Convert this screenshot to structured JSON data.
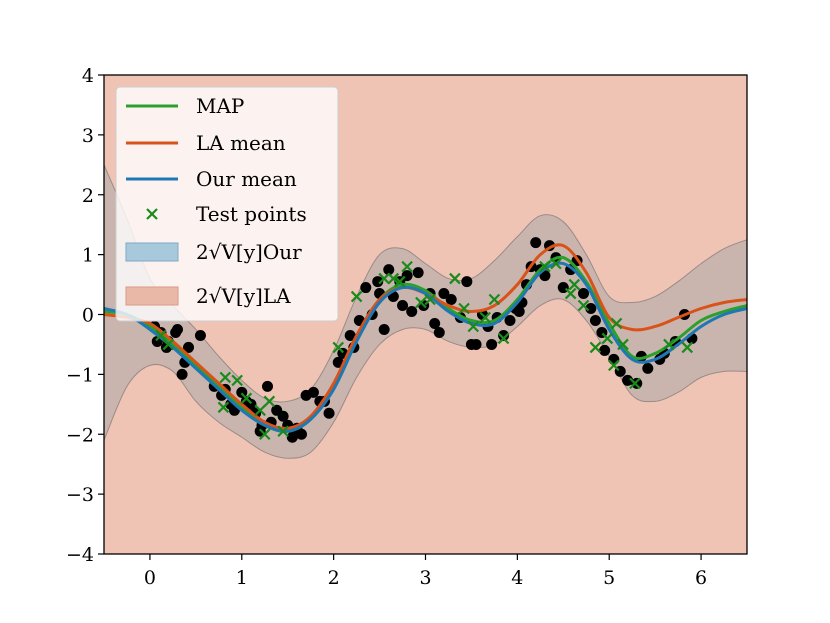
{
  "chart_data": {
    "type": "line",
    "title": "",
    "xlabel": "",
    "ylabel": "",
    "xlim": [
      -0.5,
      6.5
    ],
    "ylim": [
      -4,
      4
    ],
    "x_ticks": [
      0,
      1,
      2,
      3,
      4,
      5,
      6
    ],
    "y_ticks": [
      -4,
      -3,
      -2,
      -1,
      0,
      1,
      2,
      3,
      4
    ],
    "x_tick_labels": [
      "0",
      "1",
      "2",
      "3",
      "4",
      "5",
      "6"
    ],
    "y_tick_labels": [
      "−4",
      "−3",
      "−2",
      "−1",
      "0",
      "1",
      "2",
      "3",
      "4"
    ],
    "legend_position": "top-left",
    "colors": {
      "map": "#2ca02c",
      "la_mean": "#d95319",
      "our_mean": "#1f77b4",
      "test_points": "#1a8a1a",
      "train_points": "#000000",
      "our_band": "#a9a9a9",
      "la_band": "#efc4b4"
    },
    "legend": [
      {
        "key": "map",
        "label": "MAP",
        "kind": "line",
        "color": "#2ca02c"
      },
      {
        "key": "la_mean",
        "label": "LA mean",
        "kind": "line",
        "color": "#d95319"
      },
      {
        "key": "our_mean",
        "label": "Our mean",
        "kind": "line",
        "color": "#1f77b4"
      },
      {
        "key": "test",
        "label": "Test points",
        "kind": "marker",
        "color": "#1a8a1a"
      },
      {
        "key": "our_band",
        "label": "2√V[y]Our",
        "kind": "patch",
        "color": "#a8c8dc"
      },
      {
        "key": "la_band",
        "label": "2√V[y]LA",
        "kind": "patch",
        "color": "#e9b8a6"
      }
    ],
    "x": [
      -0.5,
      -0.25,
      0.0,
      0.25,
      0.5,
      0.75,
      1.0,
      1.25,
      1.5,
      1.75,
      2.0,
      2.25,
      2.5,
      2.75,
      3.0,
      3.25,
      3.5,
      3.75,
      4.0,
      4.25,
      4.5,
      4.75,
      5.0,
      5.25,
      5.5,
      5.75,
      6.0,
      6.25,
      6.5
    ],
    "series": [
      {
        "name": "MAP",
        "values": [
          0.05,
          0.0,
          -0.2,
          -0.5,
          -0.85,
          -1.2,
          -1.55,
          -1.85,
          -1.95,
          -1.75,
          -1.2,
          -0.4,
          0.25,
          0.5,
          0.4,
          0.1,
          -0.1,
          -0.1,
          0.25,
          0.75,
          0.95,
          0.55,
          -0.15,
          -0.7,
          -0.65,
          -0.4,
          -0.1,
          0.05,
          0.15
        ]
      },
      {
        "name": "LA mean",
        "values": [
          0.0,
          -0.05,
          -0.15,
          -0.45,
          -0.8,
          -1.15,
          -1.5,
          -1.8,
          -1.9,
          -1.7,
          -1.15,
          -0.35,
          0.25,
          0.45,
          0.35,
          0.15,
          0.05,
          0.15,
          0.5,
          1.0,
          1.15,
          0.7,
          -0.05,
          -0.25,
          -0.2,
          -0.05,
          0.1,
          0.2,
          0.25
        ]
      },
      {
        "name": "Our mean",
        "values": [
          0.1,
          0.0,
          -0.25,
          -0.55,
          -0.9,
          -1.25,
          -1.6,
          -1.85,
          -1.95,
          -1.75,
          -1.25,
          -0.45,
          0.2,
          0.45,
          0.35,
          0.05,
          -0.15,
          -0.15,
          0.2,
          0.7,
          0.85,
          0.5,
          -0.25,
          -0.75,
          -0.75,
          -0.5,
          -0.2,
          0.0,
          0.1
        ]
      }
    ],
    "our_band": {
      "upper": [
        2.5,
        1.6,
        0.6,
        0.15,
        -0.25,
        -0.7,
        -1.1,
        -1.4,
        -1.45,
        -1.25,
        -0.6,
        0.3,
        1.0,
        1.1,
        0.85,
        0.6,
        0.6,
        0.9,
        1.3,
        1.65,
        1.55,
        1.0,
        0.3,
        0.2,
        0.3,
        0.55,
        0.85,
        1.1,
        1.25
      ],
      "lower": [
        -2.1,
        -1.2,
        -0.85,
        -0.95,
        -1.45,
        -1.8,
        -2.05,
        -2.3,
        -2.4,
        -2.3,
        -1.8,
        -1.05,
        -0.5,
        -0.25,
        -0.25,
        -0.45,
        -0.55,
        -0.5,
        -0.2,
        0.15,
        0.25,
        -0.1,
        -0.7,
        -1.35,
        -1.45,
        -1.3,
        -1.05,
        -0.95,
        -0.95
      ]
    },
    "train_points": {
      "x": [
        0.05,
        0.08,
        0.12,
        0.18,
        0.2,
        0.22,
        0.28,
        0.3,
        0.35,
        0.38,
        0.42,
        0.55,
        0.7,
        0.78,
        0.82,
        0.88,
        0.92,
        1.0,
        1.05,
        1.1,
        1.15,
        1.2,
        1.22,
        1.28,
        1.32,
        1.38,
        1.45,
        1.5,
        1.55,
        1.6,
        1.65,
        1.7,
        1.78,
        1.85,
        1.9,
        1.95,
        2.05,
        2.1,
        2.18,
        2.22,
        2.28,
        2.35,
        2.42,
        2.48,
        2.5,
        2.55,
        2.6,
        2.65,
        2.72,
        2.75,
        2.8,
        2.85,
        2.92,
        2.98,
        3.05,
        3.1,
        3.15,
        3.2,
        3.28,
        3.38,
        3.45,
        3.5,
        3.55,
        3.62,
        3.68,
        3.72,
        3.78,
        3.85,
        3.92,
        3.98,
        4.02,
        4.05,
        4.1,
        4.15,
        4.2,
        4.25,
        4.3,
        4.35,
        4.42,
        4.5,
        4.58,
        4.65,
        4.72,
        4.8,
        4.85,
        4.92,
        4.95,
        5.05,
        5.12,
        5.2,
        5.3,
        5.35,
        5.42,
        5.55,
        5.6,
        5.72,
        5.82,
        5.9
      ],
      "y": [
        -0.2,
        -0.45,
        -0.3,
        -0.55,
        -0.45,
        -0.5,
        -0.3,
        -0.25,
        -1.0,
        -0.8,
        -0.55,
        -0.35,
        -1.2,
        -1.35,
        -1.25,
        -1.5,
        -1.6,
        -1.3,
        -1.45,
        -1.5,
        -1.65,
        -1.95,
        -1.85,
        -1.2,
        -1.8,
        -1.6,
        -1.7,
        -1.85,
        -2.05,
        -1.9,
        -2.0,
        -1.35,
        -1.3,
        -1.45,
        -1.45,
        -1.65,
        -0.8,
        -0.65,
        -0.35,
        -0.55,
        -0.1,
        0.45,
        0.0,
        0.55,
        0.35,
        -0.25,
        0.75,
        0.3,
        0.55,
        0.15,
        0.65,
        0.05,
        0.7,
        0.15,
        0.35,
        -0.15,
        -0.3,
        0.35,
        0.25,
        -0.05,
        0.55,
        -0.5,
        -0.5,
        0.0,
        -0.2,
        -0.5,
        -0.05,
        -0.35,
        -0.1,
        0.1,
        0.05,
        0.2,
        0.5,
        0.8,
        1.2,
        0.75,
        0.65,
        1.15,
        0.95,
        0.45,
        0.75,
        0.9,
        0.35,
        0.1,
        -0.1,
        -0.3,
        -0.6,
        -0.75,
        -0.95,
        -1.1,
        -1.15,
        -0.7,
        -0.9,
        -0.75,
        -0.65,
        -0.45,
        0.0,
        -0.4
      ]
    },
    "test_points": {
      "x": [
        0.12,
        0.2,
        0.8,
        0.82,
        0.95,
        1.05,
        1.2,
        1.25,
        1.3,
        1.45,
        2.05,
        2.25,
        2.55,
        2.65,
        2.72,
        2.8,
        2.95,
        3.05,
        3.32,
        3.42,
        3.52,
        3.65,
        3.75,
        3.85,
        4.3,
        4.42,
        4.58,
        4.62,
        4.72,
        4.85,
        4.98,
        5.05,
        5.08,
        5.15,
        5.28,
        5.65,
        5.85
      ],
      "y": [
        -0.35,
        -0.5,
        -1.55,
        -1.05,
        -1.1,
        -1.4,
        -1.6,
        -2.0,
        -1.45,
        -1.95,
        -0.55,
        0.3,
        0.6,
        0.6,
        0.55,
        0.8,
        0.2,
        0.25,
        0.6,
        0.1,
        -0.2,
        -0.05,
        0.25,
        -0.4,
        0.8,
        0.85,
        0.35,
        0.5,
        0.15,
        -0.55,
        -0.4,
        -0.85,
        -0.15,
        -0.5,
        -1.15,
        -0.5,
        -0.55
      ]
    }
  }
}
